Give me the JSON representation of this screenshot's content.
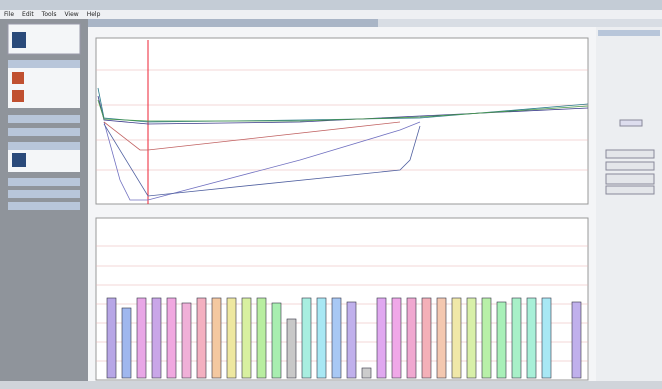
{
  "menu": [
    "File",
    "Edit",
    "Tools",
    "View",
    "Help"
  ],
  "chart_data": {
    "type": "bar",
    "categories": [
      null,
      null,
      null,
      null,
      null,
      null,
      null,
      null,
      null,
      null,
      null,
      null,
      null,
      null,
      null,
      null,
      null,
      null,
      null,
      null,
      null,
      null,
      null,
      null,
      null,
      null,
      null,
      null,
      null,
      null,
      null,
      null
    ],
    "values": [
      4.0,
      3.5,
      4.0,
      4.0,
      4.0,
      3.75,
      4.0,
      4.0,
      4.0,
      4.0,
      4.0,
      3.75,
      2.95,
      4.0,
      4.0,
      4.0,
      3.8,
      0.5,
      4.0,
      4.0,
      4.0,
      4.0,
      4.0,
      4.0,
      4.0,
      4.0,
      3.8,
      4.0,
      4.0,
      4.0,
      null,
      3.8
    ],
    "colors": [
      "#b7a6e6",
      "#9fb7ee",
      "#e8a6e6",
      "#c9a6e8",
      "#f0a8e0",
      "#f0b0d8",
      "#f4b0c0",
      "#f4c8a0",
      "#eee8a0",
      "#d8f0a0",
      "#b8eea0",
      "#a8eeb0",
      "#c8c8c8",
      "#a8eee0",
      "#a8e8f4",
      "#a8c8f4",
      "#c0b0ec",
      "#cccccc",
      "#e0a8f0",
      "#f0a8e8",
      "#f0a8d0",
      "#f4b0b8",
      "#f4c8b0",
      "#f0e8a8",
      "#d8f0a8",
      "#b8f0a8",
      "#a8f0b8",
      "#a8f0c8",
      "#a8f0d8",
      "#a8e8f4",
      null,
      "#c0b0ec"
    ],
    "ylim": [
      0,
      8
    ]
  }
}
